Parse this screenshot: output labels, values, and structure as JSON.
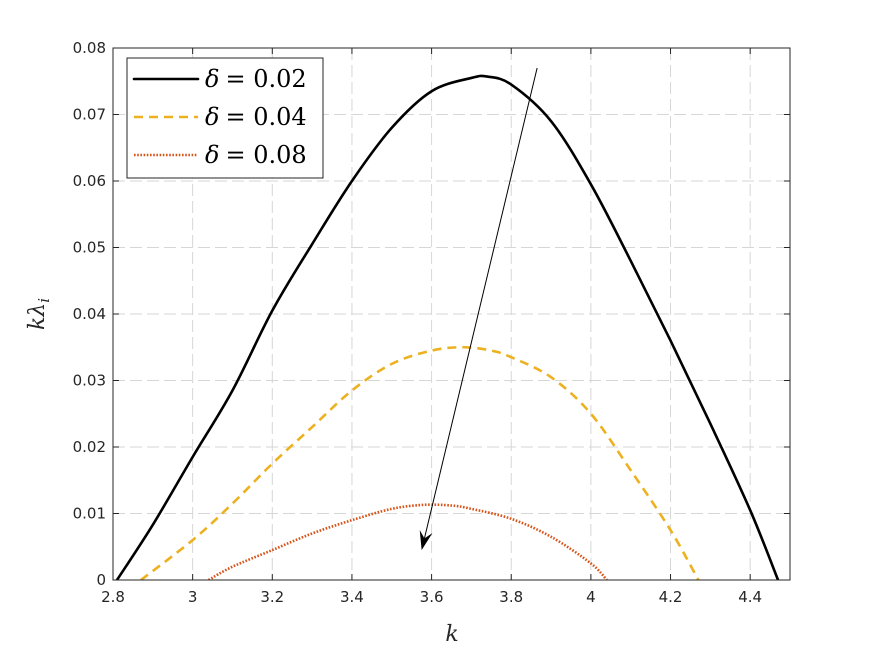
{
  "chart_data": {
    "type": "line",
    "title": "",
    "xlabel": "k",
    "ylabel_main": "kλ",
    "ylabel_sub": "i",
    "xlim": [
      2.8,
      4.5
    ],
    "ylim": [
      0,
      0.08
    ],
    "xticks": [
      2.8,
      3.0,
      3.2,
      3.4,
      3.6,
      3.8,
      4.0,
      4.2,
      4.4
    ],
    "xtick_labels": [
      "2.8",
      "3",
      "3.2",
      "3.4",
      "3.6",
      "3.8",
      "4",
      "4.2",
      "4.4"
    ],
    "yticks": [
      0,
      0.01,
      0.02,
      0.03,
      0.04,
      0.05,
      0.06,
      0.07,
      0.08
    ],
    "ytick_labels": [
      "0",
      "0.01",
      "0.02",
      "0.03",
      "0.04",
      "0.05",
      "0.06",
      "0.07",
      "0.08"
    ],
    "grid": true,
    "legend_position": "top-left",
    "series": [
      {
        "name": "δ = 0.02",
        "legend_symbol": "δ",
        "legend_value": "= 0.02",
        "color": "#000000",
        "style": "solid",
        "x": [
          2.81,
          2.9,
          3.0,
          3.1,
          3.2,
          3.3,
          3.4,
          3.5,
          3.6,
          3.7,
          3.74,
          3.8,
          3.9,
          4.0,
          4.1,
          4.2,
          4.3,
          4.4,
          4.47
        ],
        "y": [
          0.0,
          0.0083,
          0.0185,
          0.0285,
          0.0405,
          0.0505,
          0.06,
          0.068,
          0.0735,
          0.0755,
          0.0757,
          0.0745,
          0.069,
          0.0595,
          0.048,
          0.036,
          0.0235,
          0.0105,
          0.0
        ]
      },
      {
        "name": "δ = 0.04",
        "legend_symbol": "δ",
        "legend_value": "= 0.04",
        "color": "#EDB120",
        "style": "dashed",
        "x": [
          2.87,
          3.0,
          3.1,
          3.2,
          3.3,
          3.4,
          3.5,
          3.6,
          3.68,
          3.75,
          3.8,
          3.9,
          4.0,
          4.1,
          4.2,
          4.27
        ],
        "y": [
          0.0,
          0.006,
          0.0115,
          0.0175,
          0.023,
          0.0285,
          0.0325,
          0.0345,
          0.035,
          0.0345,
          0.0335,
          0.0305,
          0.025,
          0.0165,
          0.0075,
          0.0
        ]
      },
      {
        "name": "δ = 0.08",
        "legend_symbol": "δ",
        "legend_value": "= 0.08",
        "color": "#D95319",
        "style": "dotted",
        "x": [
          3.04,
          3.1,
          3.2,
          3.3,
          3.4,
          3.5,
          3.58,
          3.65,
          3.7,
          3.8,
          3.9,
          4.0,
          4.04
        ],
        "y": [
          0.0,
          0.002,
          0.0045,
          0.007,
          0.009,
          0.0107,
          0.0113,
          0.0112,
          0.0107,
          0.0092,
          0.0065,
          0.0025,
          0.0
        ]
      }
    ],
    "annotations": [
      {
        "type": "arrow",
        "from": [
          3.865,
          0.077
        ],
        "to": [
          3.575,
          0.0045
        ],
        "color": "#000000"
      }
    ]
  }
}
